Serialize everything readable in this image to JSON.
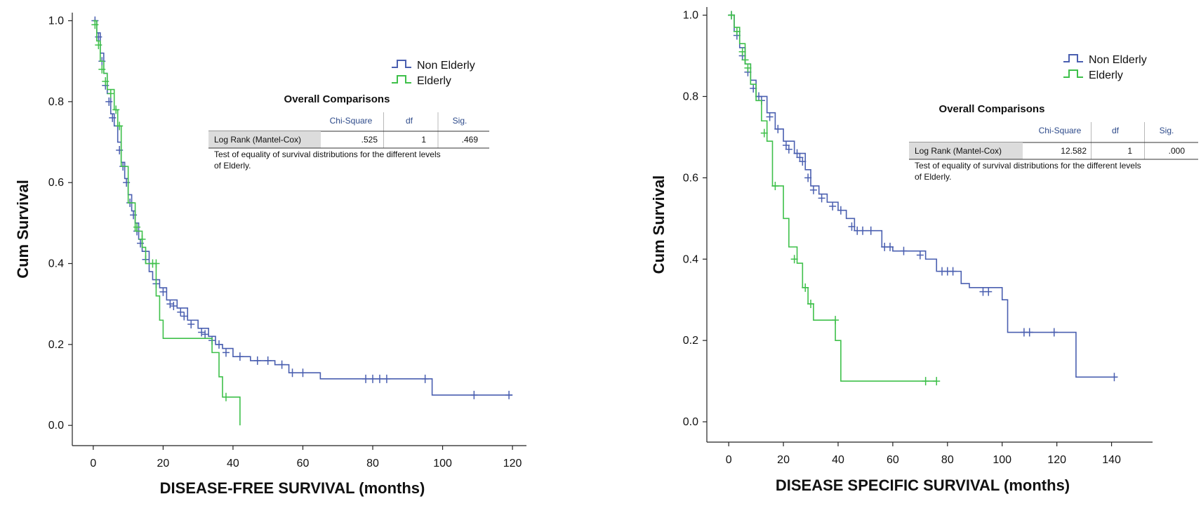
{
  "colors": {
    "non_elderly": "#4a5fb0",
    "elderly": "#3ec04a",
    "axis": "#222222",
    "table_rowhead": "#dcdcdc"
  },
  "chart_data": [
    {
      "type": "line",
      "step": true,
      "title": "",
      "xlabel": "DISEASE-FREE SURVIVAL (months)",
      "ylabel": "Cum Survival",
      "xlim": [
        -6,
        124
      ],
      "ylim": [
        -0.05,
        1.02
      ],
      "xticks": [
        0,
        20,
        40,
        60,
        80,
        100,
        120
      ],
      "yticks": [
        0.0,
        0.2,
        0.4,
        0.6,
        0.8,
        1.0
      ],
      "legend": {
        "placement": "top-right",
        "entries": [
          "Non Elderly",
          "Elderly"
        ]
      },
      "series": [
        {
          "name": "Non Elderly",
          "color_key": "non_elderly",
          "points": [
            [
              0,
              1.0
            ],
            [
              1,
              0.97
            ],
            [
              2,
              0.92
            ],
            [
              3,
              0.87
            ],
            [
              4,
              0.82
            ],
            [
              5,
              0.77
            ],
            [
              6,
              0.74
            ],
            [
              7,
              0.7
            ],
            [
              8,
              0.65
            ],
            [
              9,
              0.61
            ],
            [
              10,
              0.57
            ],
            [
              11,
              0.53
            ],
            [
              12,
              0.5
            ],
            [
              13,
              0.46
            ],
            [
              14,
              0.43
            ],
            [
              16,
              0.38
            ],
            [
              17,
              0.36
            ],
            [
              19,
              0.34
            ],
            [
              21,
              0.31
            ],
            [
              24,
              0.29
            ],
            [
              27,
              0.26
            ],
            [
              30,
              0.24
            ],
            [
              33,
              0.22
            ],
            [
              35,
              0.2
            ],
            [
              37,
              0.19
            ],
            [
              40,
              0.17
            ],
            [
              45,
              0.16
            ],
            [
              52,
              0.15
            ],
            [
              56,
              0.13
            ],
            [
              65,
              0.115
            ],
            [
              97,
              0.075
            ],
            [
              120,
              0.075
            ]
          ],
          "censored": [
            [
              0.5,
              1.0
            ],
            [
              1.5,
              0.96
            ],
            [
              2.5,
              0.9
            ],
            [
              3.5,
              0.84
            ],
            [
              4.5,
              0.8
            ],
            [
              5.5,
              0.76
            ],
            [
              7.5,
              0.68
            ],
            [
              8.5,
              0.64
            ],
            [
              9.5,
              0.6
            ],
            [
              10.5,
              0.55
            ],
            [
              11.5,
              0.52
            ],
            [
              12.5,
              0.48
            ],
            [
              13.5,
              0.45
            ],
            [
              15,
              0.41
            ],
            [
              18,
              0.35
            ],
            [
              20,
              0.33
            ],
            [
              22,
              0.3
            ],
            [
              23,
              0.295
            ],
            [
              25,
              0.28
            ],
            [
              26,
              0.27
            ],
            [
              28,
              0.25
            ],
            [
              31,
              0.23
            ],
            [
              32,
              0.225
            ],
            [
              34,
              0.21
            ],
            [
              36,
              0.2
            ],
            [
              38,
              0.18
            ],
            [
              42,
              0.17
            ],
            [
              47,
              0.16
            ],
            [
              50,
              0.16
            ],
            [
              54,
              0.15
            ],
            [
              57,
              0.13
            ],
            [
              60,
              0.13
            ],
            [
              78,
              0.115
            ],
            [
              80,
              0.115
            ],
            [
              82,
              0.115
            ],
            [
              84,
              0.115
            ],
            [
              95,
              0.115
            ],
            [
              109,
              0.075
            ],
            [
              119,
              0.075
            ]
          ]
        },
        {
          "name": "Elderly",
          "color_key": "elderly",
          "points": [
            [
              0,
              1.0
            ],
            [
              1,
              0.95
            ],
            [
              2,
              0.9
            ],
            [
              3,
              0.87
            ],
            [
              4,
              0.83
            ],
            [
              6,
              0.78
            ],
            [
              7,
              0.74
            ],
            [
              8,
              0.64
            ],
            [
              10,
              0.55
            ],
            [
              12,
              0.48
            ],
            [
              14,
              0.44
            ],
            [
              15,
              0.4
            ],
            [
              18,
              0.32
            ],
            [
              19,
              0.26
            ],
            [
              20,
              0.215
            ],
            [
              34,
              0.18
            ],
            [
              36,
              0.12
            ],
            [
              37,
              0.07
            ],
            [
              42,
              0.0
            ]
          ],
          "censored": [
            [
              0.5,
              0.99
            ],
            [
              1.5,
              0.94
            ],
            [
              2.5,
              0.88
            ],
            [
              3.5,
              0.85
            ],
            [
              5,
              0.82
            ],
            [
              6.5,
              0.78
            ],
            [
              7.5,
              0.74
            ],
            [
              12.5,
              0.49
            ],
            [
              14,
              0.46
            ],
            [
              17,
              0.4
            ],
            [
              18,
              0.4
            ],
            [
              38,
              0.07
            ]
          ]
        }
      ],
      "comparison": {
        "title": "Overall Comparisons",
        "headers": [
          "Chi-Square",
          "df",
          "Sig."
        ],
        "row_label": "Log Rank (Mantel-Cox)",
        "values": [
          ".525",
          "1",
          ".469"
        ],
        "note_line1": "Test of equality of survival distributions for the different levels",
        "note_line2": "of Elderly."
      }
    },
    {
      "type": "line",
      "step": true,
      "title": "",
      "xlabel": "DISEASE SPECIFIC SURVIVAL (months)",
      "ylabel": "Cum Survival",
      "xlim": [
        -8,
        155
      ],
      "ylim": [
        -0.05,
        1.02
      ],
      "xticks": [
        0,
        20,
        40,
        60,
        80,
        100,
        120,
        140
      ],
      "yticks": [
        0.0,
        0.2,
        0.4,
        0.6,
        0.8,
        1.0
      ],
      "legend": {
        "placement": "top-right",
        "entries": [
          "Non Elderly",
          "Elderly"
        ]
      },
      "series": [
        {
          "name": "Non Elderly",
          "color_key": "non_elderly",
          "points": [
            [
              0,
              1.0
            ],
            [
              2,
              0.96
            ],
            [
              4,
              0.92
            ],
            [
              6,
              0.88
            ],
            [
              8,
              0.84
            ],
            [
              10,
              0.8
            ],
            [
              14,
              0.76
            ],
            [
              17,
              0.72
            ],
            [
              20,
              0.69
            ],
            [
              24,
              0.66
            ],
            [
              28,
              0.62
            ],
            [
              30,
              0.58
            ],
            [
              33,
              0.56
            ],
            [
              36,
              0.54
            ],
            [
              40,
              0.52
            ],
            [
              43,
              0.5
            ],
            [
              46,
              0.47
            ],
            [
              56,
              0.43
            ],
            [
              60,
              0.42
            ],
            [
              72,
              0.4
            ],
            [
              76,
              0.37
            ],
            [
              85,
              0.34
            ],
            [
              88,
              0.33
            ],
            [
              100,
              0.3
            ],
            [
              102,
              0.22
            ],
            [
              127,
              0.11
            ],
            [
              142,
              0.11
            ]
          ],
          "censored": [
            [
              1,
              1.0
            ],
            [
              3,
              0.95
            ],
            [
              5,
              0.9
            ],
            [
              7,
              0.86
            ],
            [
              9,
              0.82
            ],
            [
              11,
              0.8
            ],
            [
              12,
              0.79
            ],
            [
              15,
              0.75
            ],
            [
              18,
              0.72
            ],
            [
              21,
              0.68
            ],
            [
              22,
              0.67
            ],
            [
              25,
              0.66
            ],
            [
              26,
              0.65
            ],
            [
              27,
              0.64
            ],
            [
              29,
              0.6
            ],
            [
              31,
              0.57
            ],
            [
              34,
              0.55
            ],
            [
              38,
              0.53
            ],
            [
              41,
              0.52
            ],
            [
              45,
              0.48
            ],
            [
              47,
              0.47
            ],
            [
              49,
              0.47
            ],
            [
              52,
              0.47
            ],
            [
              57,
              0.43
            ],
            [
              59,
              0.43
            ],
            [
              64,
              0.42
            ],
            [
              70,
              0.41
            ],
            [
              78,
              0.37
            ],
            [
              80,
              0.37
            ],
            [
              82,
              0.37
            ],
            [
              93,
              0.32
            ],
            [
              95,
              0.32
            ],
            [
              108,
              0.22
            ],
            [
              110,
              0.22
            ],
            [
              119,
              0.22
            ],
            [
              141,
              0.11
            ]
          ]
        },
        {
          "name": "Elderly",
          "color_key": "elderly",
          "points": [
            [
              0,
              1.0
            ],
            [
              2,
              0.97
            ],
            [
              4,
              0.93
            ],
            [
              6,
              0.88
            ],
            [
              8,
              0.83
            ],
            [
              10,
              0.79
            ],
            [
              12,
              0.74
            ],
            [
              14,
              0.69
            ],
            [
              16,
              0.58
            ],
            [
              20,
              0.5
            ],
            [
              22,
              0.43
            ],
            [
              25,
              0.39
            ],
            [
              27,
              0.33
            ],
            [
              29,
              0.29
            ],
            [
              31,
              0.25
            ],
            [
              39,
              0.2
            ],
            [
              41,
              0.1
            ],
            [
              76,
              0.1
            ]
          ],
          "censored": [
            [
              1,
              1.0
            ],
            [
              3,
              0.96
            ],
            [
              5,
              0.91
            ],
            [
              6,
              0.89
            ],
            [
              7,
              0.87
            ],
            [
              13,
              0.71
            ],
            [
              17,
              0.58
            ],
            [
              24,
              0.4
            ],
            [
              28,
              0.33
            ],
            [
              30,
              0.29
            ],
            [
              39,
              0.25
            ],
            [
              72,
              0.1
            ],
            [
              76,
              0.1
            ]
          ]
        }
      ],
      "comparison": {
        "title": "Overall Comparisons",
        "headers": [
          "Chi-Square",
          "df",
          "Sig."
        ],
        "row_label": "Log Rank (Mantel-Cox)",
        "values": [
          "12.582",
          "1",
          ".000"
        ],
        "note_line1": "Test of equality of survival distributions for the different levels",
        "note_line2": "of Elderly."
      }
    }
  ]
}
